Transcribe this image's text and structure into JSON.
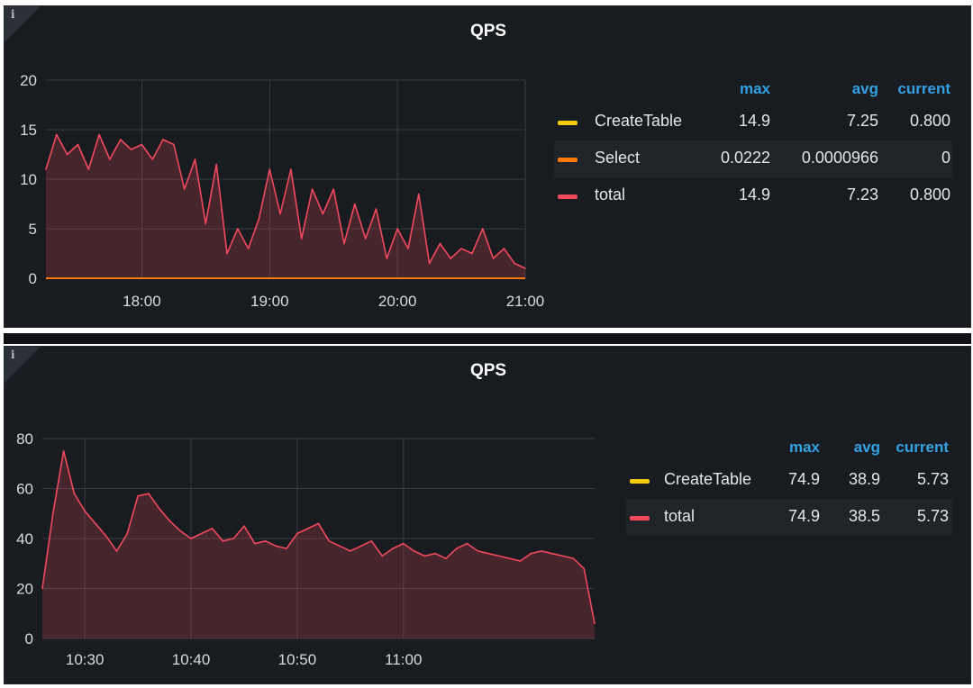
{
  "chart_data": [
    {
      "type": "area",
      "title": "QPS",
      "info_icon": "i",
      "xlabel": "",
      "ylabel": "",
      "ylim": [
        0,
        20
      ],
      "yticks": [
        0,
        5,
        10,
        15,
        20
      ],
      "x_time_range": [
        "17:15",
        "21:00"
      ],
      "xticks": [
        "18:00",
        "19:00",
        "20:00",
        "21:00"
      ],
      "grid": true,
      "legend": {
        "placement": "right",
        "columns": [
          "max",
          "avg",
          "current"
        ],
        "entries": [
          {
            "name": "CreateTable",
            "color": "#f2cc0c",
            "max": "14.9",
            "avg": "7.25",
            "current": "0.800"
          },
          {
            "name": "Select",
            "color": "#ff780a",
            "max": "0.0222",
            "avg": "0.0000966",
            "current": "0"
          },
          {
            "name": "total",
            "color": "#f2495c",
            "max": "14.9",
            "avg": "7.23",
            "current": "0.800"
          }
        ]
      },
      "series": [
        {
          "name": "total",
          "color": "#f2495c",
          "x": [
            "17:15",
            "17:20",
            "17:25",
            "17:30",
            "17:35",
            "17:40",
            "17:45",
            "17:50",
            "17:55",
            "18:00",
            "18:05",
            "18:10",
            "18:15",
            "18:20",
            "18:25",
            "18:30",
            "18:35",
            "18:40",
            "18:45",
            "18:50",
            "18:55",
            "19:00",
            "19:05",
            "19:10",
            "19:15",
            "19:20",
            "19:25",
            "19:30",
            "19:35",
            "19:40",
            "19:45",
            "19:50",
            "19:55",
            "20:00",
            "20:05",
            "20:10",
            "20:15",
            "20:20",
            "20:25",
            "20:30",
            "20:35",
            "20:40",
            "20:45",
            "20:50",
            "20:55",
            "21:00"
          ],
          "values": [
            11,
            14.5,
            12.5,
            13.5,
            11,
            14.5,
            12,
            14,
            13,
            13.5,
            12,
            14,
            13.5,
            9,
            12,
            5.5,
            11.5,
            2.5,
            5,
            3,
            6,
            11,
            6.5,
            11,
            4,
            9,
            6.5,
            9,
            3.5,
            7.5,
            4,
            7,
            2,
            5,
            3,
            8.5,
            1.5,
            3.5,
            2,
            3,
            2.5,
            5,
            2,
            3,
            1.5,
            1
          ]
        },
        {
          "name": "Select",
          "color": "#ff780a",
          "x": [
            "17:15",
            "21:00"
          ],
          "values": [
            0,
            0
          ]
        }
      ]
    },
    {
      "type": "area",
      "title": "QPS",
      "info_icon": "i",
      "xlabel": "",
      "ylabel": "",
      "ylim": [
        0,
        80
      ],
      "yticks": [
        0,
        20,
        40,
        60,
        80
      ],
      "x_time_range": [
        "10:26",
        "11:18"
      ],
      "xticks": [
        "10:30",
        "10:40",
        "10:50",
        "11:00"
      ],
      "grid": true,
      "legend": {
        "placement": "right",
        "columns": [
          "max",
          "avg",
          "current"
        ],
        "entries": [
          {
            "name": "CreateTable",
            "color": "#f2cc0c",
            "max": "74.9",
            "avg": "38.9",
            "current": "5.73"
          },
          {
            "name": "total",
            "color": "#f2495c",
            "max": "74.9",
            "avg": "38.5",
            "current": "5.73"
          }
        ]
      },
      "series": [
        {
          "name": "total",
          "color": "#f2495c",
          "x": [
            "10:26",
            "10:27",
            "10:28",
            "10:29",
            "10:30",
            "10:31",
            "10:32",
            "10:33",
            "10:34",
            "10:35",
            "10:36",
            "10:37",
            "10:38",
            "10:39",
            "10:40",
            "10:41",
            "10:42",
            "10:43",
            "10:44",
            "10:45",
            "10:46",
            "10:47",
            "10:48",
            "10:49",
            "10:50",
            "10:51",
            "10:52",
            "10:53",
            "10:54",
            "10:55",
            "10:56",
            "10:57",
            "10:58",
            "10:59",
            "11:00",
            "11:01",
            "11:02",
            "11:03",
            "11:04",
            "11:05",
            "11:06",
            "11:07",
            "11:08",
            "11:09",
            "11:10",
            "11:11",
            "11:12",
            "11:13",
            "11:14",
            "11:15",
            "11:16",
            "11:17",
            "11:18"
          ],
          "values": [
            20,
            50,
            75,
            58,
            51,
            46,
            41,
            35,
            42,
            57,
            58,
            52,
            47,
            43,
            40,
            42,
            44,
            39,
            40,
            45,
            38,
            39,
            37,
            36,
            42,
            44,
            46,
            39,
            37,
            35,
            37,
            39,
            33,
            36,
            38,
            35,
            33,
            34,
            32,
            36,
            38,
            35,
            34,
            33,
            32,
            31,
            34,
            35,
            34,
            33,
            32,
            28,
            6
          ]
        }
      ]
    }
  ]
}
